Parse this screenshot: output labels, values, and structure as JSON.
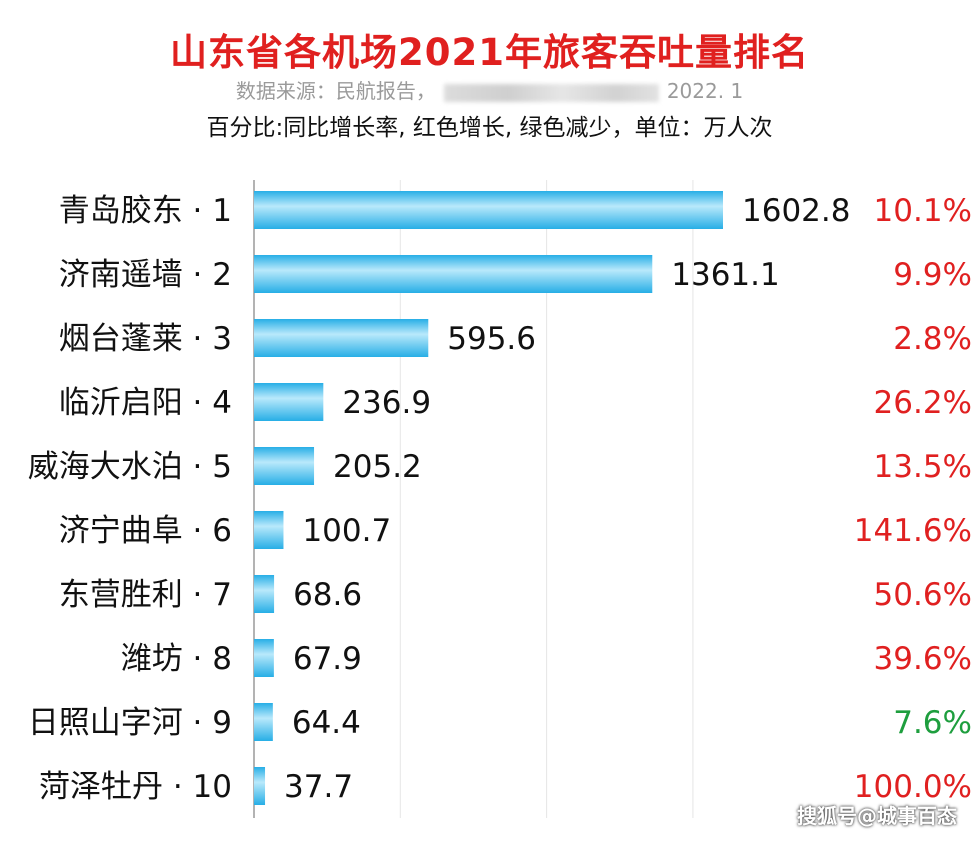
{
  "chart_data": {
    "type": "bar",
    "orientation": "horizontal",
    "title": "山东省各机场2021年旅客吞吐量排名",
    "source_prefix": "数据来源：民航报告，",
    "source_date": "2022. 1",
    "note": "百分比:同比增长率, 红色增长, 绿色减少，单位：万人次",
    "categories": [
      "青岛胶东 · 1",
      "济南遥墙 · 2",
      "烟台蓬莱 · 3",
      "临沂启阳 · 4",
      "威海大水泊 · 5",
      "济宁曲阜 · 6",
      "东营胜利 · 7",
      "潍坊 · 8",
      "日照山字河 · 9",
      "菏泽牡丹 · 10"
    ],
    "values": [
      1602.8,
      1361.1,
      595.6,
      236.9,
      205.2,
      100.7,
      68.6,
      67.9,
      64.4,
      37.7
    ],
    "value_labels": [
      "1602.8",
      "1361.1",
      "595.6",
      "236.9",
      "205.2",
      "100.7",
      "68.6",
      "67.9",
      "64.4",
      "37.7"
    ],
    "growth_labels": [
      "10.1%",
      "9.9%",
      "2.8%",
      "26.2%",
      "13.5%",
      "141.6%",
      "50.6%",
      "39.6%",
      "7.6%",
      "100.0%"
    ],
    "growth_trend": [
      "up",
      "up",
      "up",
      "up",
      "up",
      "up",
      "up",
      "up",
      "down",
      "up"
    ],
    "xlim": [
      0,
      2000
    ],
    "grid": true,
    "colors": {
      "bar": "#27aee6",
      "bar_highlight": "#b9e9fb",
      "up": "#e02020",
      "down": "#1e9e3e",
      "title": "#e0201f"
    }
  },
  "watermark": "搜狐号@城事百态"
}
